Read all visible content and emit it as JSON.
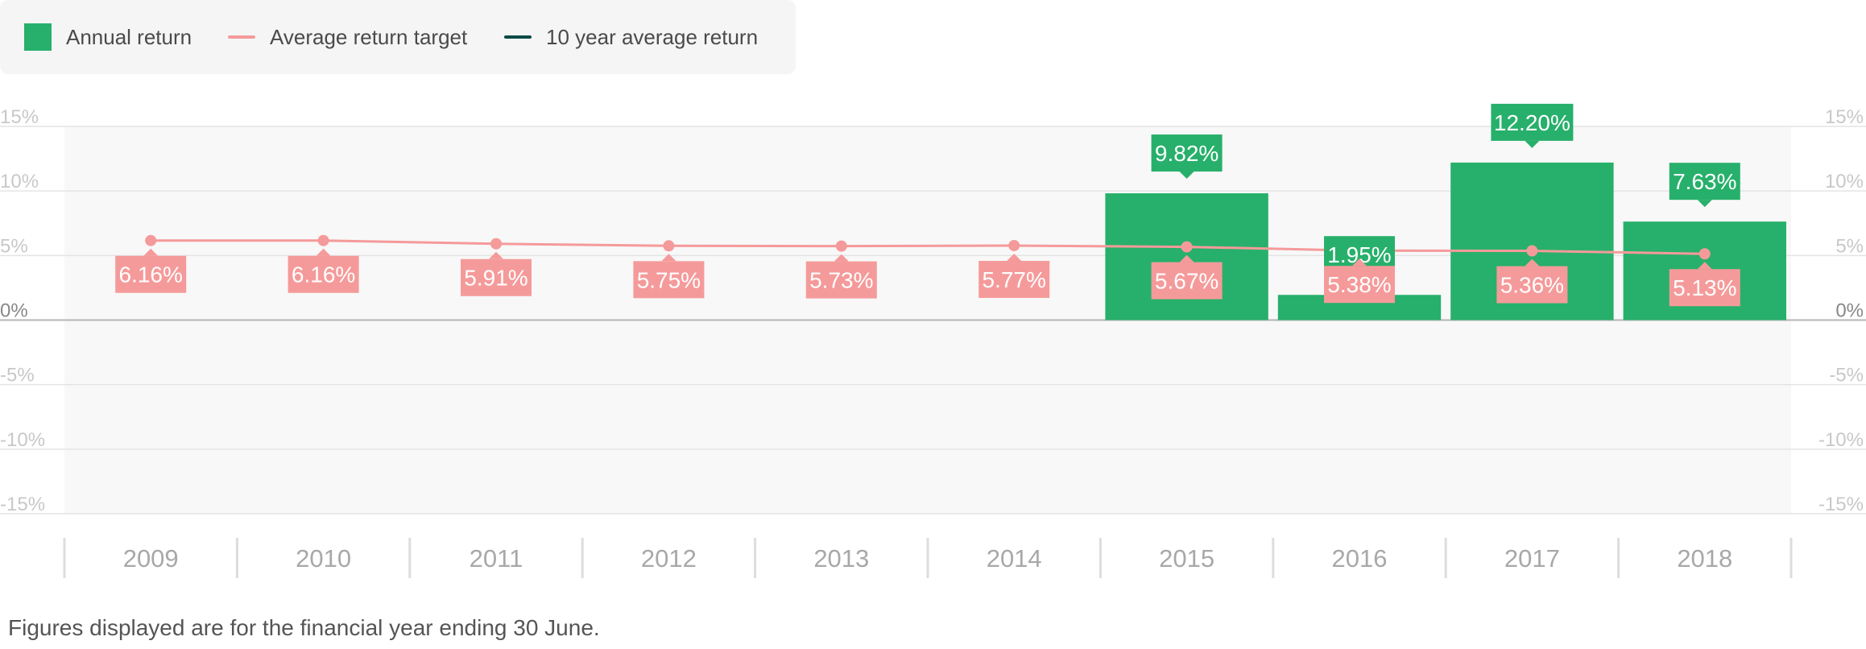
{
  "colors": {
    "annual_return": "#27b06b",
    "average_target": "#f59a9a",
    "ten_year_avg": "#0c4a44",
    "plot_bg": "#f8f8f8",
    "grid": "#e4e4e4",
    "axis_text": "#c8c8c8",
    "year_text": "#a8a8a8"
  },
  "legend": [
    {
      "label": "Annual return",
      "shape": "box",
      "color_key": "annual_return"
    },
    {
      "label": "Average return target",
      "shape": "line",
      "color_key": "average_target"
    },
    {
      "label": "10 year average return",
      "shape": "line",
      "color_key": "ten_year_avg"
    }
  ],
  "footnote": "Figures displayed are for the financial year ending 30 June.",
  "chart_data": {
    "type": "bar",
    "categories": [
      "2009",
      "2010",
      "2011",
      "2012",
      "2013",
      "2014",
      "2015",
      "2016",
      "2017",
      "2018"
    ],
    "series": [
      {
        "name": "Annual return",
        "type": "bar",
        "values": [
          null,
          null,
          null,
          null,
          null,
          null,
          9.82,
          1.95,
          12.2,
          7.63
        ],
        "labels": [
          "",
          "",
          "",
          "",
          "",
          "",
          "9.82%",
          "1.95%",
          "12.20%",
          "7.63%"
        ]
      },
      {
        "name": "Average return target",
        "type": "line",
        "values": [
          6.16,
          6.16,
          5.91,
          5.75,
          5.73,
          5.77,
          5.67,
          5.38,
          5.36,
          5.13
        ],
        "labels": [
          "6.16%",
          "6.16%",
          "5.91%",
          "5.75%",
          "5.73%",
          "5.77%",
          "5.67%",
          "5.38%",
          "5.36%",
          "5.13%"
        ]
      }
    ],
    "yticks": [
      15,
      10,
      5,
      0,
      -5,
      -10,
      -15
    ],
    "ytick_labels": [
      "15%",
      "10%",
      "5%",
      "0%",
      "-5%",
      "-10%",
      "-15%"
    ],
    "ylim": [
      -15,
      15
    ],
    "grid": true,
    "legend_position": "top-left"
  }
}
